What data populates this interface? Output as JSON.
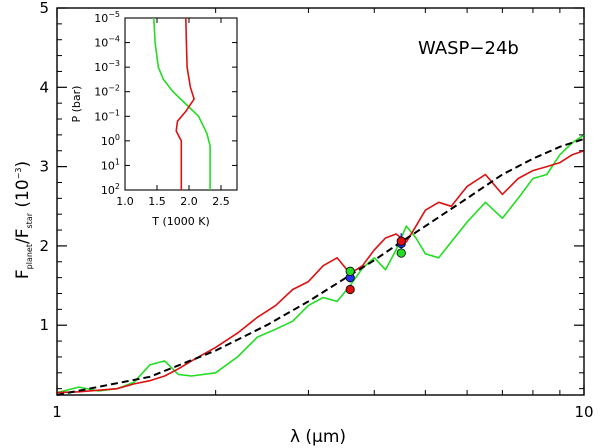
{
  "chart_data": [
    {
      "type": "line",
      "title": "",
      "annotation": "WASP−24b",
      "xlabel": "λ (μm)",
      "ylabel": {
        "main": "F",
        "sub1": "planet",
        "sep": "/F",
        "sub2": "star",
        "unit": "(10",
        "unit_exp": "−3",
        "unit_close": ")"
      },
      "xscale": "log",
      "xlim": [
        1,
        10
      ],
      "ylim": [
        0.12,
        5
      ],
      "x_tick_labels": [
        "1",
        "10"
      ],
      "y_tick_labels": [
        "1",
        "2",
        "3",
        "4",
        "5"
      ],
      "grid": false,
      "series": [
        {
          "color": "#22dd22",
          "x": [
            1.0,
            1.1,
            1.2,
            1.3,
            1.4,
            1.5,
            1.6,
            1.7,
            1.8,
            2.0,
            2.2,
            2.4,
            2.6,
            2.8,
            3.0,
            3.2,
            3.4,
            3.6,
            3.8,
            4.0,
            4.2,
            4.4,
            4.6,
            4.8,
            5.0,
            5.3,
            5.6,
            6.0,
            6.5,
            7.0,
            7.5,
            8.0,
            8.5,
            9.0,
            9.5,
            10.0
          ],
          "y": [
            0.15,
            0.22,
            0.17,
            0.2,
            0.28,
            0.5,
            0.55,
            0.38,
            0.36,
            0.4,
            0.6,
            0.85,
            0.95,
            1.05,
            1.25,
            1.35,
            1.3,
            1.5,
            1.72,
            1.85,
            1.7,
            1.95,
            2.25,
            2.1,
            1.9,
            1.85,
            2.05,
            2.3,
            2.55,
            2.35,
            2.6,
            2.85,
            2.9,
            3.15,
            3.3,
            3.4
          ]
        },
        {
          "color": "#dd1111",
          "x": [
            1.0,
            1.1,
            1.2,
            1.3,
            1.4,
            1.5,
            1.6,
            1.7,
            1.8,
            2.0,
            2.2,
            2.4,
            2.6,
            2.8,
            3.0,
            3.2,
            3.4,
            3.6,
            3.8,
            4.0,
            4.2,
            4.4,
            4.6,
            4.8,
            5.0,
            5.3,
            5.6,
            6.0,
            6.5,
            7.0,
            7.5,
            8.0,
            8.5,
            9.0,
            9.5,
            10.0
          ],
          "y": [
            0.15,
            0.16,
            0.18,
            0.2,
            0.26,
            0.3,
            0.36,
            0.45,
            0.55,
            0.72,
            0.9,
            1.1,
            1.25,
            1.45,
            1.55,
            1.75,
            1.85,
            1.65,
            1.75,
            1.95,
            2.1,
            2.15,
            2.05,
            2.25,
            2.45,
            2.55,
            2.5,
            2.75,
            2.9,
            2.65,
            2.85,
            2.95,
            3.0,
            3.05,
            3.15,
            3.2
          ]
        },
        {
          "color": "#000000",
          "dashed": true,
          "x": [
            1.0,
            1.5,
            2.0,
            2.5,
            3.0,
            3.5,
            4.0,
            4.5,
            5.0,
            6.0,
            7.0,
            8.0,
            9.0,
            10.0
          ],
          "y": [
            0.08,
            0.35,
            0.68,
            1.0,
            1.3,
            1.58,
            1.82,
            2.05,
            2.25,
            2.6,
            2.9,
            3.1,
            3.25,
            3.35
          ]
        }
      ],
      "points": [
        {
          "x": 3.6,
          "y": 1.6,
          "color": "#2233ee",
          "err": 0.06
        },
        {
          "x": 3.6,
          "y": 1.45,
          "color": "#dd1111"
        },
        {
          "x": 3.6,
          "y": 1.68,
          "color": "#22dd22"
        },
        {
          "x": 4.5,
          "y": 2.03,
          "color": "#2233ee",
          "err": 0.13
        },
        {
          "x": 4.5,
          "y": 2.06,
          "color": "#dd1111"
        },
        {
          "x": 4.5,
          "y": 1.91,
          "color": "#22dd22"
        }
      ]
    },
    {
      "type": "line",
      "title": "",
      "xlabel": "T (1000 K)",
      "ylabel": "P (bar)",
      "yscale": "log",
      "xlim": [
        1.0,
        2.75
      ],
      "ylim_exp": [
        -5,
        2
      ],
      "x_tick_labels": [
        "1.0",
        "1.5",
        "2.0",
        "2.5"
      ],
      "y_tick_labels": [
        {
          "base": "10",
          "exp": "−5"
        },
        {
          "base": "10",
          "exp": "−4"
        },
        {
          "base": "10",
          "exp": "−3"
        },
        {
          "base": "10",
          "exp": "−2"
        },
        {
          "base": "10",
          "exp": "−1"
        },
        {
          "base": "10",
          "exp": "0"
        },
        {
          "base": "10",
          "exp": "1"
        },
        {
          "base": "10",
          "exp": "2"
        }
      ],
      "series": [
        {
          "color": "#22dd22",
          "T": [
            1.45,
            1.47,
            1.52,
            1.6,
            1.75,
            1.95,
            2.15,
            2.28,
            2.33,
            2.33,
            2.33
          ],
          "logP": [
            -5,
            -4,
            -3,
            -2.5,
            -2,
            -1.5,
            -1,
            -0.3,
            0.2,
            1,
            2
          ]
        },
        {
          "color": "#dd1111",
          "T": [
            1.95,
            1.96,
            1.97,
            2.02,
            2.08,
            1.95,
            1.82,
            1.8,
            1.88,
            1.88,
            1.88
          ],
          "logP": [
            -5,
            -4,
            -3,
            -2.2,
            -1.7,
            -1.2,
            -0.8,
            -0.4,
            0,
            1,
            2
          ]
        }
      ]
    }
  ]
}
